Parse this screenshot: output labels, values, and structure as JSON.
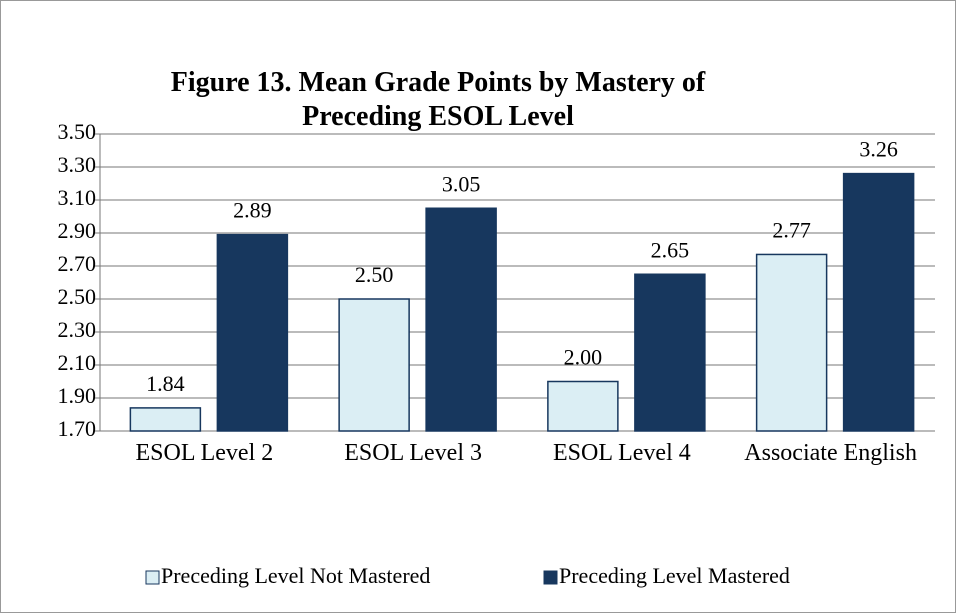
{
  "chart_data": {
    "type": "bar",
    "title": "Figure 13. Mean Grade Points by Mastery of Preceding ESOL Level",
    "categories": [
      "ESOL Level 2",
      "ESOL Level 3",
      "ESOL Level 4",
      "Associate English"
    ],
    "series": [
      {
        "name": "Preceding Level Not Mastered",
        "color": "#dbeef4",
        "values": [
          1.84,
          2.5,
          2.0,
          2.77
        ],
        "value_labels": [
          "1.84",
          "2.50",
          "2.00",
          "2.77"
        ]
      },
      {
        "name": "Preceding Level Mastered",
        "color": "#17375e",
        "values": [
          2.89,
          3.05,
          2.65,
          3.26
        ],
        "value_labels": [
          "2.89",
          "3.05",
          "2.65",
          "3.26"
        ]
      }
    ],
    "ylim": [
      1.7,
      3.5
    ],
    "yticks": [
      {
        "value": 1.7,
        "label": "1.70"
      },
      {
        "value": 1.9,
        "label": "1.90"
      },
      {
        "value": 2.1,
        "label": "2.10"
      },
      {
        "value": 2.3,
        "label": "2.30"
      },
      {
        "value": 2.5,
        "label": "2.50"
      },
      {
        "value": 2.7,
        "label": "2.70"
      },
      {
        "value": 2.9,
        "label": "2.90"
      },
      {
        "value": 3.1,
        "label": "3.10"
      },
      {
        "value": 3.3,
        "label": "3.30"
      },
      {
        "value": 3.5,
        "label": "3.50"
      }
    ],
    "grid": true,
    "legend": "bottom"
  }
}
